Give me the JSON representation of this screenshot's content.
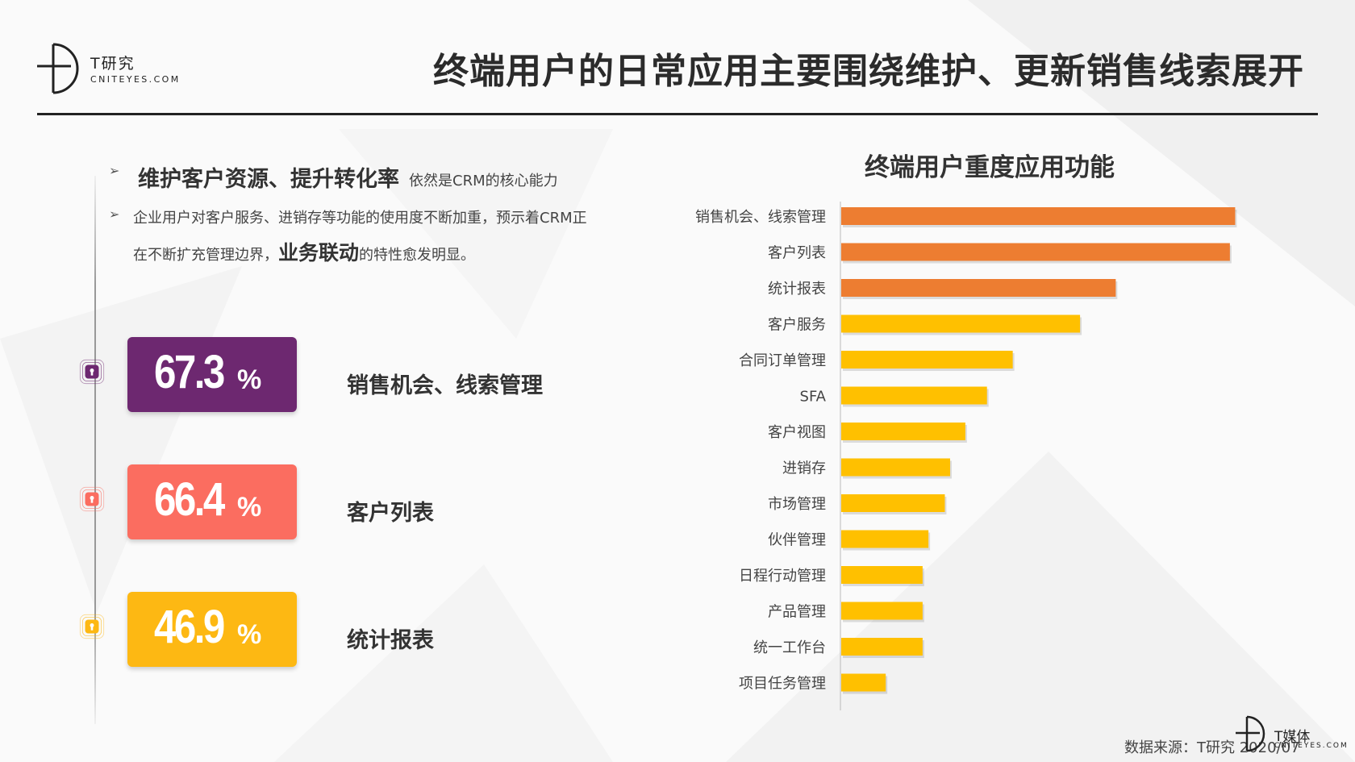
{
  "logo": {
    "name_cn": "T研究",
    "name_en": "CNITEYES.COM"
  },
  "title": "终端用户的日常应用主要围绕维护、更新销售线索展开",
  "bullets": {
    "b1_lead": "维护客户资源、提升转化率",
    "b1_tail": "依然是CRM的核心能力",
    "b2_line1": "企业用户对客户服务、进销存等功能的使用度不断加重，预示着CRM正",
    "b2_line2_pre": "在不断扩充管理边界，",
    "b2_line2_strong": "业务联动",
    "b2_line2_post": "的特性愈发明显。"
  },
  "stats": [
    {
      "value": "67.3",
      "unit": "%",
      "label": "销售机会、线索管理",
      "color": "#6d2870",
      "icon": "lock-icon"
    },
    {
      "value": "66.4",
      "unit": "%",
      "label": "客户列表",
      "color": "#fb6d60",
      "icon": "lock-icon"
    },
    {
      "value": "46.9",
      "unit": "%",
      "label": "统计报表",
      "color": "#fdb813",
      "icon": "lock-icon"
    }
  ],
  "chart_data": {
    "type": "bar",
    "orientation": "horizontal",
    "title": "终端用户重度应用功能",
    "categories": [
      "销售机会、线索管理",
      "客户列表",
      "统计报表",
      "客户服务",
      "合同订单管理",
      "SFA",
      "客户视图",
      "进销存",
      "市场管理",
      "伙伴管理",
      "日程行动管理",
      "产品管理",
      "统一工作台",
      "项目任务管理"
    ],
    "values": [
      67.3,
      66.4,
      46.9,
      40.8,
      29.3,
      24.9,
      21.2,
      18.6,
      17.7,
      14.9,
      13.9,
      13.9,
      13.9,
      7.6
    ],
    "units": "%",
    "colors": [
      "#ed7d31",
      "#ed7d31",
      "#ed7d31",
      "#ffc000",
      "#ffc000",
      "#ffc000",
      "#ffc000",
      "#ffc000",
      "#ffc000",
      "#ffc000",
      "#ffc000",
      "#ffc000",
      "#ffc000",
      "#ffc000"
    ],
    "xlim": [
      0,
      70
    ],
    "grid": false,
    "legend": "none"
  },
  "footer": {
    "source": "数据来源：T研究 2020/07",
    "brand_cn": "T媒体",
    "brand_en": "CNITEYES.COM"
  }
}
